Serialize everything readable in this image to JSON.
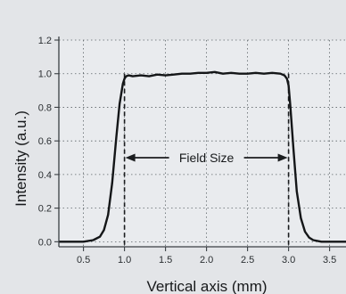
{
  "chart_data": {
    "type": "line",
    "title": "",
    "xlabel": "Vertical axis (mm)",
    "ylabel": "Intensity (a.u.)",
    "xlim": [
      0.2,
      3.7
    ],
    "ylim": [
      -0.03,
      1.2
    ],
    "x_ticks": [
      0.5,
      1.0,
      1.5,
      2.0,
      2.5,
      3.0,
      3.5
    ],
    "x_tick_labels": [
      "0.5",
      "1.0",
      "1.5",
      "2.0",
      "2.5",
      "3.0",
      "3.5"
    ],
    "y_ticks": [
      0.0,
      0.2,
      0.4,
      0.6,
      0.8,
      1.0,
      1.2
    ],
    "y_tick_labels": [
      "0.0",
      "0.2",
      "0.4",
      "0.6",
      "0.8",
      "1.0",
      "1.2"
    ],
    "grid": true,
    "series": [
      {
        "x": [
          0.2,
          0.5,
          0.62,
          0.7,
          0.75,
          0.8,
          0.85,
          0.9,
          0.94,
          0.98,
          1.0,
          1.02,
          1.05,
          1.1,
          1.2,
          1.3,
          1.4,
          1.5,
          1.6,
          1.7,
          1.8,
          1.9,
          2.0,
          2.1,
          2.2,
          2.3,
          2.4,
          2.5,
          2.6,
          2.7,
          2.8,
          2.9,
          2.95,
          2.98,
          3.0,
          3.02,
          3.06,
          3.1,
          3.15,
          3.2,
          3.25,
          3.3,
          3.4,
          3.5,
          3.7
        ],
        "y": [
          0.0,
          0.0,
          0.01,
          0.03,
          0.07,
          0.16,
          0.35,
          0.62,
          0.82,
          0.94,
          0.97,
          0.985,
          0.99,
          0.985,
          0.99,
          0.985,
          0.995,
          0.99,
          0.995,
          1.0,
          1.0,
          1.005,
          1.005,
          1.01,
          1.0,
          1.005,
          1.0,
          1.0,
          1.005,
          1.0,
          1.005,
          1.0,
          0.99,
          0.97,
          0.93,
          0.82,
          0.55,
          0.3,
          0.14,
          0.06,
          0.025,
          0.01,
          0.0,
          0.0,
          0.0
        ]
      }
    ],
    "markers_x": [
      1.0,
      3.0
    ],
    "annotation": {
      "text": "Field Size",
      "y": 0.5
    }
  }
}
